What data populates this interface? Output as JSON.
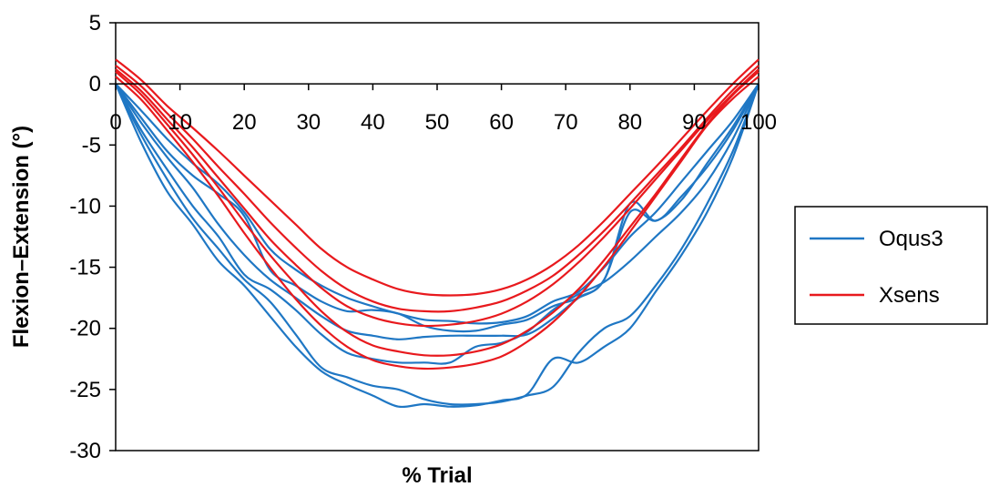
{
  "chart_data": {
    "type": "line",
    "title": "",
    "xlabel": "% Trial",
    "ylabel": "Flexion–Extension (°)",
    "xlim": [
      0,
      100
    ],
    "ylim": [
      -30,
      5
    ],
    "x_ticks": [
      0,
      10,
      20,
      30,
      40,
      50,
      60,
      70,
      80,
      90,
      100
    ],
    "y_ticks": [
      5,
      0,
      -5,
      -10,
      -15,
      -20,
      -25,
      -30
    ],
    "x_tick_labels": [
      "0",
      "10",
      "20",
      "30",
      "40",
      "50",
      "60",
      "70",
      "80",
      "90",
      "100"
    ],
    "y_tick_labels": [
      "5",
      "0",
      "-5",
      "-10",
      "-15",
      "-20",
      "-25",
      "-30"
    ],
    "grid": false,
    "legend_position": "right",
    "legend": [
      {
        "label": "Oqus3",
        "color": "#1f77c4"
      },
      {
        "label": "Xsens",
        "color": "#e8191d"
      }
    ],
    "series": [
      {
        "group": "Oqus3",
        "color": "#1f77c4",
        "x": [
          0,
          4,
          8,
          12,
          16,
          20,
          24,
          28,
          32,
          36,
          40,
          44,
          48,
          52,
          56,
          60,
          64,
          68,
          72,
          76,
          80,
          84,
          88,
          92,
          96,
          100
        ],
        "y": [
          0,
          -2.2,
          -4.5,
          -6.5,
          -8.2,
          -10.5,
          -13.5,
          -15.2,
          -16.5,
          -17.5,
          -18.2,
          -18.8,
          -19.3,
          -19.4,
          -19.6,
          -19.5,
          -19,
          -17.8,
          -17,
          -15,
          -12.5,
          -10.5,
          -8,
          -5.5,
          -3,
          0
        ]
      },
      {
        "group": "Oqus3",
        "color": "#1f77c4",
        "x": [
          0,
          4,
          8,
          12,
          16,
          20,
          24,
          28,
          32,
          36,
          40,
          44,
          48,
          52,
          56,
          60,
          64,
          68,
          72,
          76,
          80,
          84,
          88,
          92,
          96,
          100
        ],
        "y": [
          0,
          -2.8,
          -5.5,
          -7.5,
          -9,
          -10.8,
          -15.2,
          -16.5,
          -17.8,
          -18.6,
          -18.5,
          -18.8,
          -19.8,
          -20.2,
          -20.2,
          -19.7,
          -19.3,
          -18.2,
          -17.5,
          -16,
          -10.5,
          -11.2,
          -9.5,
          -6.5,
          -3.5,
          0
        ]
      },
      {
        "group": "Oqus3",
        "color": "#1f77c4",
        "x": [
          0,
          4,
          8,
          12,
          16,
          20,
          24,
          28,
          32,
          36,
          40,
          44,
          48,
          52,
          56,
          60,
          64,
          68,
          72,
          76,
          80,
          84,
          88,
          92,
          96,
          100
        ],
        "y": [
          0,
          -3.2,
          -6,
          -8.5,
          -11.5,
          -14,
          -16,
          -17.5,
          -19,
          -20.2,
          -20.6,
          -20.9,
          -20.7,
          -20.6,
          -20.6,
          -20.6,
          -20.5,
          -19.2,
          -17.5,
          -16,
          -9.8,
          -11.2,
          -9.2,
          -6.8,
          -3.8,
          0
        ]
      },
      {
        "group": "Oqus3",
        "color": "#1f77c4",
        "x": [
          0,
          4,
          8,
          12,
          16,
          20,
          24,
          28,
          32,
          36,
          40,
          44,
          48,
          52,
          56,
          60,
          64,
          68,
          72,
          76,
          80,
          84,
          88,
          92,
          96,
          100
        ],
        "y": [
          0,
          -3.8,
          -7,
          -10,
          -12.5,
          -15.6,
          -16.8,
          -18.5,
          -20.5,
          -22,
          -22.5,
          -22.8,
          -22.8,
          -22.8,
          -21.5,
          -21.2,
          -20.3,
          -18.5,
          -17.2,
          -16.2,
          -14.5,
          -12.5,
          -10.5,
          -8,
          -4.5,
          0
        ]
      },
      {
        "group": "Oqus3",
        "color": "#1f77c4",
        "x": [
          0,
          4,
          8,
          12,
          16,
          20,
          24,
          28,
          32,
          36,
          40,
          44,
          48,
          52,
          56,
          60,
          64,
          68,
          72,
          76,
          80,
          84,
          88,
          92,
          96,
          100
        ],
        "y": [
          0,
          -4.2,
          -7.8,
          -11,
          -13.5,
          -16,
          -17.8,
          -20.5,
          -23.2,
          -24,
          -24.7,
          -25,
          -25.8,
          -26.2,
          -26.2,
          -26,
          -25.5,
          -24.8,
          -22,
          -20,
          -19,
          -16.5,
          -13.5,
          -9.8,
          -5.5,
          0
        ]
      },
      {
        "group": "Oqus3",
        "color": "#1f77c4",
        "x": [
          0,
          4,
          8,
          12,
          16,
          20,
          24,
          28,
          32,
          36,
          40,
          44,
          48,
          52,
          56,
          60,
          64,
          68,
          72,
          76,
          80,
          84,
          88,
          92,
          96,
          100
        ],
        "y": [
          0,
          -4.8,
          -8.8,
          -11.5,
          -14.5,
          -16.5,
          -19,
          -21.5,
          -23.5,
          -24.6,
          -25.5,
          -26.4,
          -26.2,
          -26.4,
          -26.3,
          -25.9,
          -25.4,
          -22.5,
          -22.8,
          -21.5,
          -20,
          -17,
          -14,
          -10.5,
          -6,
          0
        ]
      },
      {
        "group": "Xsens",
        "color": "#e8191d",
        "x": [
          0,
          4,
          8,
          12,
          16,
          20,
          24,
          28,
          32,
          36,
          40,
          44,
          48,
          52,
          56,
          60,
          64,
          68,
          72,
          76,
          80,
          84,
          88,
          92,
          96,
          100
        ],
        "y": [
          2,
          0.3,
          -1.8,
          -3.6,
          -5.5,
          -7.5,
          -9.5,
          -11.5,
          -13.5,
          -15,
          -16,
          -16.8,
          -17.2,
          -17.3,
          -17.2,
          -16.8,
          -16,
          -14.8,
          -13.2,
          -11.2,
          -9,
          -6.8,
          -4.5,
          -2.2,
          0,
          2
        ]
      },
      {
        "group": "Xsens",
        "color": "#e8191d",
        "x": [
          0,
          4,
          8,
          12,
          16,
          20,
          24,
          28,
          32,
          36,
          40,
          44,
          48,
          52,
          56,
          60,
          64,
          68,
          72,
          76,
          80,
          84,
          88,
          92,
          96,
          100
        ],
        "y": [
          1.5,
          -0.2,
          -2.4,
          -4.5,
          -6.8,
          -9,
          -11.3,
          -13.4,
          -15.3,
          -16.8,
          -17.8,
          -18.4,
          -18.6,
          -18.6,
          -18.3,
          -17.8,
          -16.9,
          -15.7,
          -14,
          -12,
          -9.8,
          -7.5,
          -5.2,
          -2.8,
          -0.5,
          1.5
        ]
      },
      {
        "group": "Xsens",
        "color": "#e8191d",
        "x": [
          0,
          4,
          8,
          12,
          16,
          20,
          24,
          28,
          32,
          36,
          40,
          44,
          48,
          52,
          56,
          60,
          64,
          68,
          72,
          76,
          80,
          84,
          88,
          92,
          96,
          100
        ],
        "y": [
          1.2,
          -0.6,
          -2.9,
          -5.2,
          -7.7,
          -10.2,
          -12.7,
          -14.8,
          -16.7,
          -18.2,
          -19.1,
          -19.6,
          -19.8,
          -19.7,
          -19.4,
          -18.8,
          -17.8,
          -16.4,
          -14.6,
          -12.5,
          -10.2,
          -7.8,
          -5.4,
          -3,
          -0.8,
          1.2
        ]
      },
      {
        "group": "Xsens",
        "color": "#e8191d",
        "x": [
          0,
          4,
          8,
          12,
          16,
          20,
          24,
          28,
          32,
          36,
          40,
          44,
          48,
          52,
          56,
          60,
          64,
          68,
          72,
          76,
          80,
          84,
          88,
          92,
          96,
          100
        ],
        "y": [
          1,
          -0.9,
          -3.3,
          -5.8,
          -8.5,
          -11.3,
          -14,
          -16.4,
          -18.6,
          -20.3,
          -21.4,
          -21.9,
          -22.2,
          -22.2,
          -21.9,
          -21.3,
          -20.2,
          -18.7,
          -16.8,
          -14.4,
          -11.7,
          -9,
          -6.1,
          -3.3,
          -0.9,
          1
        ]
      },
      {
        "group": "Xsens",
        "color": "#e8191d",
        "x": [
          0,
          4,
          8,
          12,
          16,
          20,
          24,
          28,
          32,
          36,
          40,
          44,
          48,
          52,
          56,
          60,
          64,
          68,
          72,
          76,
          80,
          84,
          88,
          92,
          96,
          100
        ],
        "y": [
          0.6,
          -1.3,
          -3.8,
          -6.4,
          -9.2,
          -12.2,
          -15,
          -17.6,
          -19.8,
          -21.5,
          -22.6,
          -23.1,
          -23.3,
          -23.2,
          -22.9,
          -22.3,
          -21.1,
          -19.5,
          -17.4,
          -14.9,
          -12.1,
          -9.2,
          -6.3,
          -3.4,
          -1.2,
          0.6
        ]
      }
    ]
  }
}
